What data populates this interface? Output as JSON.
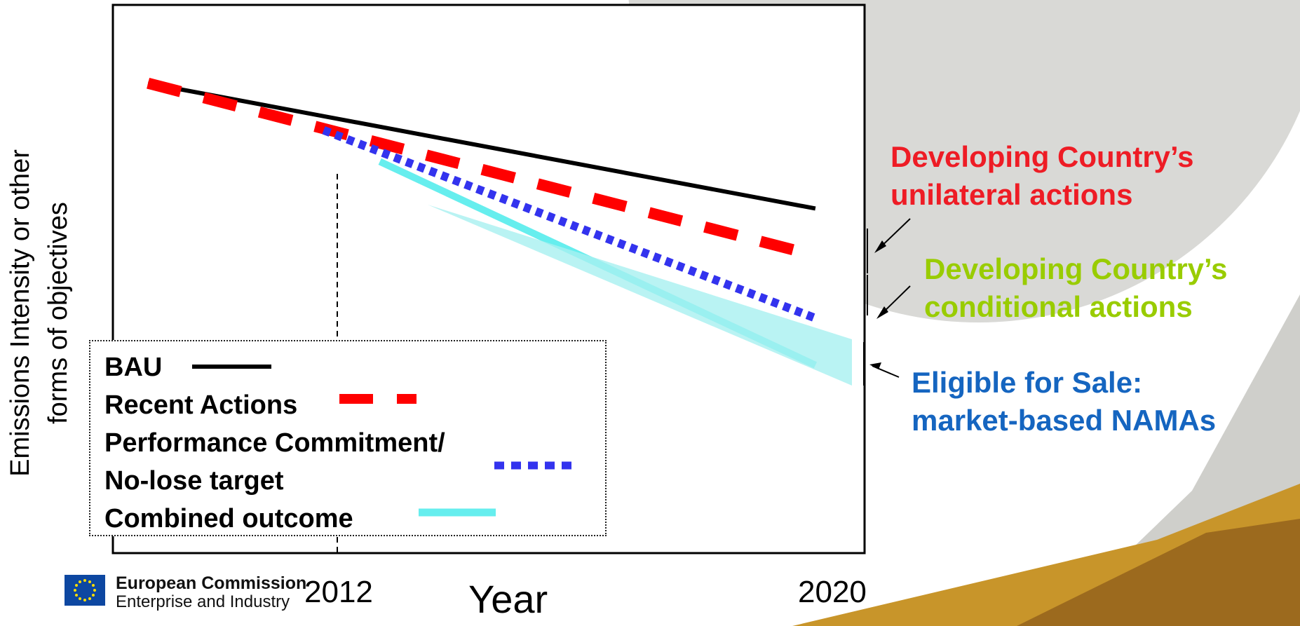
{
  "chart_data": {
    "type": "line",
    "ylabel_line1": "Emissions Intensity or other",
    "ylabel_line2": "forms of objectives",
    "xlabel": "Year",
    "x_ticks": [
      "2012",
      "2020"
    ],
    "series": [
      {
        "name": "BAU",
        "x": [
          2010.5,
          2020
        ],
        "y": [
          100,
          84
        ],
        "color": "#000000",
        "style": "solid"
      },
      {
        "name": "Recent Actions",
        "x": [
          2010.5,
          2020
        ],
        "y": [
          100,
          78
        ],
        "color": "#ff0000",
        "style": "dashed"
      },
      {
        "name": "Performance Commitment/ No-lose target",
        "x": [
          2013,
          2020
        ],
        "y": [
          94,
          70
        ],
        "color": "#3333ee",
        "style": "dotted"
      },
      {
        "name": "Combined outcome",
        "x": [
          2013.8,
          2020
        ],
        "y": [
          90,
          64
        ],
        "color": "#66eeee",
        "style": "solid"
      }
    ],
    "legend": [
      {
        "label": "BAU",
        "color": "#000000",
        "style": "solid"
      },
      {
        "label": "Recent Actions",
        "color": "#ff0000",
        "style": "dashed"
      },
      {
        "label": "Performance Commitment/",
        "color": "#3333ee",
        "style": "dotted"
      },
      {
        "label": "No-lose target"
      },
      {
        "label": "Combined outcome",
        "color": "#66eeee",
        "style": "solid"
      }
    ],
    "annotations": [
      {
        "line1": "Developing Country’s",
        "line2": "unilateral actions",
        "color": "#ee1c25"
      },
      {
        "line1": "Developing Country’s",
        "line2": "conditional actions",
        "color": "#99cc00"
      },
      {
        "line1": "Eligible for Sale:",
        "line2": "market-based NAMAs",
        "color": "#1565c0"
      }
    ]
  },
  "footer": {
    "org_name": "European Commission",
    "org_dept": "Enterprise and Industry"
  }
}
